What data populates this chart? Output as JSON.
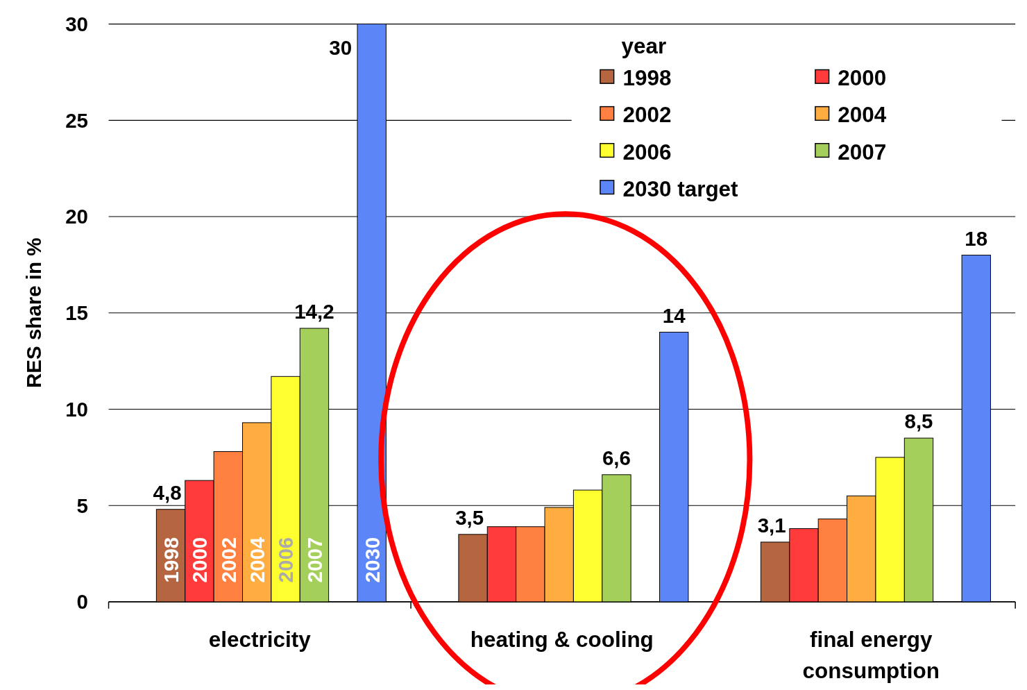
{
  "chart_data": {
    "type": "bar",
    "ylabel": "RES share in %",
    "legend_title": "year",
    "categories": [
      "electricity",
      "heating & cooling",
      "final energy consumption"
    ],
    "series": [
      {
        "name": "1998",
        "color": "#b5653f",
        "values": [
          4.8,
          3.5,
          3.1
        ],
        "value_labels": [
          "4,8",
          "3,5",
          "3,1"
        ]
      },
      {
        "name": "2000",
        "color": "#ff3b3b",
        "values": [
          6.3,
          3.9,
          3.8
        ],
        "value_labels": [
          null,
          null,
          null
        ]
      },
      {
        "name": "2002",
        "color": "#ff8040",
        "values": [
          7.8,
          3.9,
          4.3
        ],
        "value_labels": [
          null,
          null,
          null
        ]
      },
      {
        "name": "2004",
        "color": "#ffac40",
        "values": [
          9.3,
          4.9,
          5.5
        ],
        "value_labels": [
          null,
          null,
          null
        ]
      },
      {
        "name": "2006",
        "color": "#ffff30",
        "values": [
          11.7,
          5.8,
          7.5
        ],
        "value_labels": [
          null,
          null,
          null
        ]
      },
      {
        "name": "2007",
        "color": "#a3cf5a",
        "values": [
          14.2,
          6.6,
          8.5
        ],
        "value_labels": [
          "14,2",
          "6,6",
          "8,5"
        ]
      },
      {
        "name": "2030 target",
        "color": "#5c85f7",
        "values": [
          30,
          14,
          18
        ],
        "value_labels": [
          "30",
          "14",
          "18"
        ]
      }
    ],
    "annotations": [
      "1998",
      "2000",
      "2002",
      "2004",
      "2006",
      "2007",
      "2030"
    ],
    "ylim": [
      0,
      30
    ],
    "yticks": [
      0,
      5,
      10,
      15,
      20,
      25,
      30
    ],
    "grid": "y",
    "legend": "top right"
  }
}
